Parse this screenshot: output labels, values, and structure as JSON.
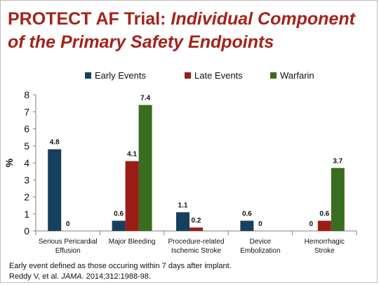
{
  "title": {
    "prefix": "PROTECT AF Trial: ",
    "italic": "Individual Component of the Primary Safety Endpoints"
  },
  "chart_data": {
    "type": "bar",
    "categories": [
      [
        "Serious Pericardial",
        "Effusion"
      ],
      [
        "Major Bleeding"
      ],
      [
        "Procedure-related",
        "Ischemic Stroke"
      ],
      [
        "Device",
        "Embolization"
      ],
      [
        "Hemorrhagic",
        "Stroke"
      ]
    ],
    "series": [
      {
        "name": "Early Events",
        "color": "#17405f",
        "values": [
          4.8,
          0.6,
          1.1,
          0.6,
          0
        ]
      },
      {
        "name": "Late Events",
        "color": "#9b1d16",
        "values": [
          0,
          4.1,
          0.2,
          0,
          0.6
        ]
      },
      {
        "name": "Warfarin",
        "color": "#3a6d1f",
        "values": [
          null,
          7.4,
          null,
          null,
          3.7
        ]
      }
    ],
    "data_labels": [
      [
        "4.8",
        "0.6",
        "1.1",
        "0.6",
        "0"
      ],
      [
        "0",
        "4.1",
        "0.2",
        "0",
        "0.6"
      ],
      [
        null,
        "7.4",
        null,
        null,
        "3.7"
      ]
    ],
    "ylabel": "%",
    "ylim": [
      0,
      8
    ],
    "yticks": [
      "0",
      "1",
      "2",
      "3",
      "4",
      "5",
      "6",
      "7",
      "8"
    ],
    "grid": false,
    "legend_position": "top"
  },
  "footnote": {
    "line1": "Early event defined as those occuring within 7 days after implant.",
    "line2_before": "Reddy V, et al. ",
    "line2_journal": "JAMA",
    "line2_after": ". 2014;312:1988-98."
  }
}
